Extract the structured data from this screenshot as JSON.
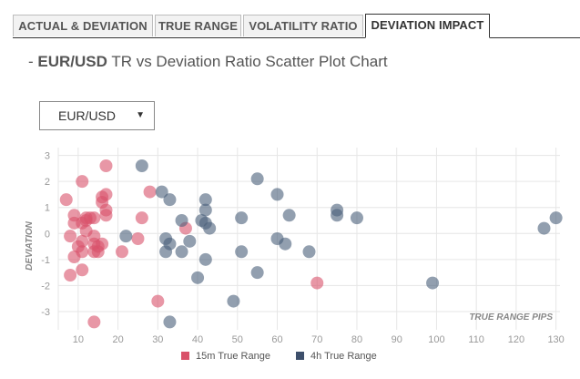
{
  "tabs": [
    {
      "label": "ACTUAL & DEVIATION",
      "active": false
    },
    {
      "label": "TRUE RANGE",
      "active": false
    },
    {
      "label": "VOLATILITY RATIO",
      "active": false
    },
    {
      "label": "DEVIATION IMPACT",
      "active": true
    }
  ],
  "title": {
    "prefix": "- ",
    "pair": "EUR/USD",
    "rest": " TR vs Deviation Ratio Scatter Plot Chart"
  },
  "pair_select": {
    "value": "EUR/USD",
    "caret": "▼"
  },
  "colors": {
    "series_15m": "#d9526a",
    "series_4h": "#4a5f7a",
    "grid": "#e6e6e6",
    "axis_text": "#999999"
  },
  "chart_data": {
    "type": "scatter",
    "title": "EUR/USD TR vs Deviation Ratio Scatter Plot Chart",
    "xlabel": "TRUE RANGE PIPS",
    "ylabel": "DEVIATION",
    "xlim": [
      5,
      131
    ],
    "ylim": [
      -3.7,
      3.3
    ],
    "xticks": [
      10,
      20,
      30,
      40,
      50,
      60,
      70,
      80,
      90,
      100,
      110,
      120,
      130
    ],
    "yticks": [
      3,
      2,
      1,
      0,
      -1,
      -2,
      -3
    ],
    "grid": true,
    "legend_position": "bottom",
    "series": [
      {
        "name": "15m True Range",
        "color": "#d9526a",
        "points": [
          [
            7,
            1.3
          ],
          [
            8,
            -0.1
          ],
          [
            9,
            0.4
          ],
          [
            9,
            0.7
          ],
          [
            8,
            -1.6
          ],
          [
            9,
            -0.9
          ],
          [
            10,
            -0.5
          ],
          [
            11,
            2.0
          ],
          [
            11,
            0.4
          ],
          [
            11,
            -0.3
          ],
          [
            11,
            -0.7
          ],
          [
            11,
            -1.4
          ],
          [
            12,
            0.5
          ],
          [
            12,
            0.6
          ],
          [
            12,
            0.1
          ],
          [
            13,
            0.6
          ],
          [
            14,
            0.6
          ],
          [
            14,
            -0.1
          ],
          [
            14,
            -0.4
          ],
          [
            14,
            -0.7
          ],
          [
            14,
            -3.4
          ],
          [
            15,
            -0.5
          ],
          [
            15,
            -0.7
          ],
          [
            16,
            1.2
          ],
          [
            16,
            1.4
          ],
          [
            16,
            -0.4
          ],
          [
            17,
            2.6
          ],
          [
            17,
            1.5
          ],
          [
            17,
            0.9
          ],
          [
            17,
            0.7
          ],
          [
            21,
            -0.7
          ],
          [
            25,
            -0.2
          ],
          [
            26,
            0.6
          ],
          [
            28,
            1.6
          ],
          [
            30,
            -2.6
          ],
          [
            37,
            0.2
          ],
          [
            70,
            -1.9
          ]
        ]
      },
      {
        "name": "4h True Range",
        "color": "#4a5f7a",
        "points": [
          [
            22,
            -0.1
          ],
          [
            26,
            2.6
          ],
          [
            31,
            1.6
          ],
          [
            32,
            -0.2
          ],
          [
            32,
            -0.7
          ],
          [
            33,
            1.3
          ],
          [
            33,
            -0.4
          ],
          [
            33,
            -3.4
          ],
          [
            36,
            0.5
          ],
          [
            36,
            -0.7
          ],
          [
            38,
            -0.3
          ],
          [
            40,
            -1.7
          ],
          [
            41,
            0.5
          ],
          [
            42,
            1.3
          ],
          [
            42,
            0.9
          ],
          [
            42,
            0.4
          ],
          [
            43,
            0.2
          ],
          [
            42,
            -1.0
          ],
          [
            49,
            -2.6
          ],
          [
            51,
            0.6
          ],
          [
            51,
            -0.7
          ],
          [
            55,
            2.1
          ],
          [
            55,
            -1.5
          ],
          [
            60,
            1.5
          ],
          [
            60,
            -0.2
          ],
          [
            62,
            -0.4
          ],
          [
            63,
            0.7
          ],
          [
            68,
            -0.7
          ],
          [
            75,
            0.9
          ],
          [
            75,
            0.7
          ],
          [
            80,
            0.6
          ],
          [
            99,
            -1.9
          ],
          [
            127,
            0.2
          ],
          [
            130,
            0.6
          ]
        ]
      }
    ]
  }
}
